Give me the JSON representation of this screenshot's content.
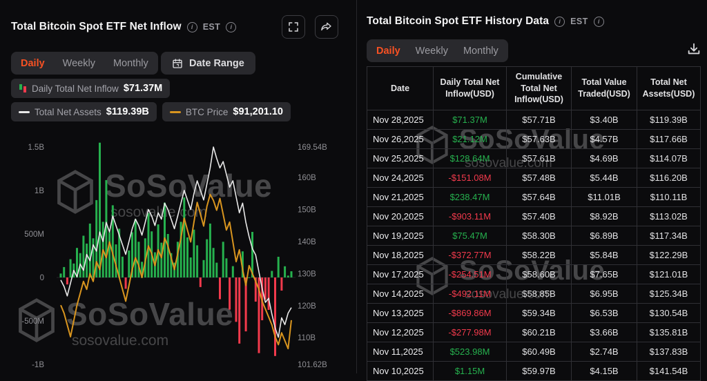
{
  "brand": {
    "watermark_text": "SoSoValue",
    "watermark_domain": "sosovalue.com"
  },
  "colors": {
    "accent": "#f75123",
    "green": "#26b14e",
    "red": "#f23a4c",
    "orange_line": "#d9951f",
    "white_line": "#e8e8e8"
  },
  "left_panel": {
    "title": "Total Bitcoin Spot ETF Net Inflow",
    "est_label": "EST",
    "tabs": [
      {
        "label": "Daily",
        "active": true
      },
      {
        "label": "Weekly",
        "active": false
      },
      {
        "label": "Monthly",
        "active": false
      }
    ],
    "date_range_label": "Date Range",
    "legend": [
      {
        "label": "Daily Total Net Inflow",
        "value": "$71.37M"
      },
      {
        "label": "Total Net Assets",
        "value": "$119.39B"
      },
      {
        "label": "BTC Price",
        "value": "$91,201.10"
      }
    ]
  },
  "chart_data": {
    "type": "bar+line",
    "title": "Total Bitcoin Spot ETF Net Inflow",
    "legend_position": "top-left",
    "grid": false,
    "left_axis": {
      "ticks": [
        "1.5B",
        "1B",
        "500M",
        "0",
        "-500M",
        "-1B"
      ],
      "range_m": [
        -1000,
        1500
      ]
    },
    "right_axis": {
      "ticks": [
        "169.54B",
        "160B",
        "150B",
        "140B",
        "130B",
        "120B",
        "110B",
        "101.62B"
      ],
      "tick_values_b": [
        169.54,
        160,
        150,
        140,
        130,
        120,
        110,
        101.62
      ],
      "range_b": [
        101.62,
        169.54
      ]
    },
    "series": [
      {
        "name": "Daily Total Net Inflow",
        "type": "bar",
        "unit": "USD millions",
        "latest": 71.37,
        "values": [
          45,
          120,
          -80,
          210,
          160,
          340,
          280,
          480,
          390,
          620,
          450,
          890,
          1550,
          640,
          1120,
          520,
          830,
          380,
          560,
          240,
          -130,
          310,
          520,
          670,
          410,
          180,
          450,
          740,
          530,
          290,
          610,
          400,
          860,
          500,
          280,
          170,
          410,
          640,
          920,
          460,
          230,
          550,
          370,
          -110,
          200,
          440,
          620,
          340,
          170,
          -250,
          410,
          220,
          -370,
          130,
          -510,
          -760,
          300,
          -620,
          1.15,
          523.98,
          -277.98,
          -869.86,
          -492.11,
          -254.51,
          -372.77,
          75.47,
          -903.11,
          238.47,
          -151.08,
          128.64,
          21.12,
          71.37
        ]
      },
      {
        "name": "Total Net Assets",
        "type": "line",
        "unit": "USD billions",
        "latest": 119.39,
        "values": [
          128,
          126,
          123,
          127,
          131,
          129,
          133,
          131,
          136,
          134,
          139,
          137,
          143,
          140,
          146,
          143,
          148,
          145,
          142,
          139,
          136,
          140,
          144,
          147,
          145,
          142,
          146,
          150,
          148,
          145,
          149,
          147,
          152,
          150,
          147,
          144,
          148,
          152,
          156,
          153,
          150,
          155,
          159,
          156,
          153,
          158,
          163,
          169.54,
          166,
          163,
          165,
          161,
          157,
          159,
          154,
          149,
          152,
          146,
          141.54,
          137.83,
          135.81,
          130.54,
          125.34,
          121.01,
          122.29,
          117.34,
          113.02,
          110.11,
          116.2,
          114.07,
          117.66,
          119.39
        ]
      },
      {
        "name": "BTC Price",
        "type": "line",
        "unit": "USD thousands",
        "latest": 91.2,
        "axis_range_k": [
          80,
          135
        ],
        "values": [
          95,
          93,
          90,
          87,
          91,
          95,
          98,
          101,
          99,
          103,
          101,
          106,
          104,
          109,
          107,
          111,
          108,
          105,
          102,
          99,
          96,
          100,
          104,
          107,
          105,
          102,
          106,
          110,
          108,
          105,
          109,
          107,
          112,
          110,
          107,
          104,
          108,
          112,
          117,
          114,
          111,
          116,
          121,
          118,
          115,
          120,
          123,
          121.5,
          119,
          122,
          118,
          114,
          116,
          111,
          106,
          109,
          104,
          100,
          105,
          103,
          101,
          99,
          96,
          94,
          92,
          90,
          87,
          85,
          88,
          86,
          84,
          91.2
        ]
      }
    ]
  },
  "right_panel": {
    "title": "Total Bitcoin Spot ETF History Data",
    "est_label": "EST",
    "tabs": [
      {
        "label": "Daily",
        "active": true
      },
      {
        "label": "Weekly",
        "active": false
      },
      {
        "label": "Monthly",
        "active": false
      }
    ],
    "table": {
      "columns": [
        "Date",
        "Daily Total Net Inflow(USD)",
        "Cumulative Total Net Inflow(USD)",
        "Total Value Traded(USD)",
        "Total Net Assets(USD)"
      ],
      "rows": [
        {
          "date": "Nov 28,2025",
          "daily": "$71.37M",
          "cumulative": "$57.71B",
          "traded": "$3.40B",
          "assets": "$119.39B"
        },
        {
          "date": "Nov 26,2025",
          "daily": "$21.12M",
          "cumulative": "$57.63B",
          "traded": "$4.57B",
          "assets": "$117.66B"
        },
        {
          "date": "Nov 25,2025",
          "daily": "$128.64M",
          "cumulative": "$57.61B",
          "traded": "$4.69B",
          "assets": "$114.07B"
        },
        {
          "date": "Nov 24,2025",
          "daily": "-$151.08M",
          "cumulative": "$57.48B",
          "traded": "$5.44B",
          "assets": "$116.20B"
        },
        {
          "date": "Nov 21,2025",
          "daily": "$238.47M",
          "cumulative": "$57.64B",
          "traded": "$11.01B",
          "assets": "$110.11B"
        },
        {
          "date": "Nov 20,2025",
          "daily": "-$903.11M",
          "cumulative": "$57.40B",
          "traded": "$8.92B",
          "assets": "$113.02B"
        },
        {
          "date": "Nov 19,2025",
          "daily": "$75.47M",
          "cumulative": "$58.30B",
          "traded": "$6.89B",
          "assets": "$117.34B"
        },
        {
          "date": "Nov 18,2025",
          "daily": "-$372.77M",
          "cumulative": "$58.22B",
          "traded": "$5.84B",
          "assets": "$122.29B"
        },
        {
          "date": "Nov 17,2025",
          "daily": "-$254.51M",
          "cumulative": "$58.60B",
          "traded": "$7.65B",
          "assets": "$121.01B"
        },
        {
          "date": "Nov 14,2025",
          "daily": "-$492.11M",
          "cumulative": "$58.85B",
          "traded": "$6.95B",
          "assets": "$125.34B"
        },
        {
          "date": "Nov 13,2025",
          "daily": "-$869.86M",
          "cumulative": "$59.34B",
          "traded": "$6.53B",
          "assets": "$130.54B"
        },
        {
          "date": "Nov 12,2025",
          "daily": "-$277.98M",
          "cumulative": "$60.21B",
          "traded": "$3.66B",
          "assets": "$135.81B"
        },
        {
          "date": "Nov 11,2025",
          "daily": "$523.98M",
          "cumulative": "$60.49B",
          "traded": "$2.74B",
          "assets": "$137.83B"
        },
        {
          "date": "Nov 10,2025",
          "daily": "$1.15M",
          "cumulative": "$59.97B",
          "traded": "$4.15B",
          "assets": "$141.54B"
        }
      ]
    }
  }
}
